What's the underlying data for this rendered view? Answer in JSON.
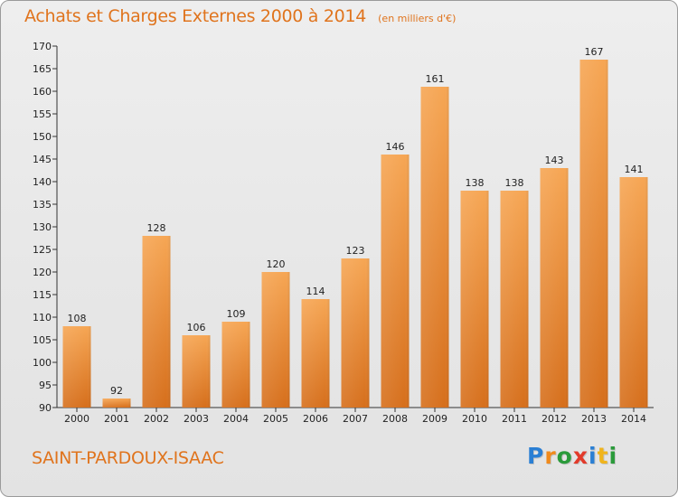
{
  "title": "Achats et Charges Externes 2000 à 2014",
  "subtitle": "(en milliers d'€)",
  "place": "SAINT-PARDOUX-ISAAC",
  "logo": "Proxiti",
  "colors": {
    "title": "#e0741d",
    "bar_light": "#f4a352",
    "bar_dark": "#d9731f",
    "background": "#e9e9e9"
  },
  "chart_data": {
    "type": "bar",
    "categories": [
      "2000",
      "2001",
      "2002",
      "2003",
      "2004",
      "2005",
      "2006",
      "2007",
      "2008",
      "2009",
      "2010",
      "2011",
      "2012",
      "2013",
      "2014"
    ],
    "values": [
      108,
      92,
      128,
      106,
      109,
      120,
      114,
      123,
      146,
      161,
      138,
      138,
      143,
      167,
      141
    ],
    "ylim": [
      90,
      170
    ],
    "yticks": [
      90,
      95,
      100,
      105,
      110,
      115,
      120,
      125,
      130,
      135,
      140,
      145,
      150,
      155,
      160,
      165,
      170
    ],
    "grid": false,
    "data_labels": true
  }
}
